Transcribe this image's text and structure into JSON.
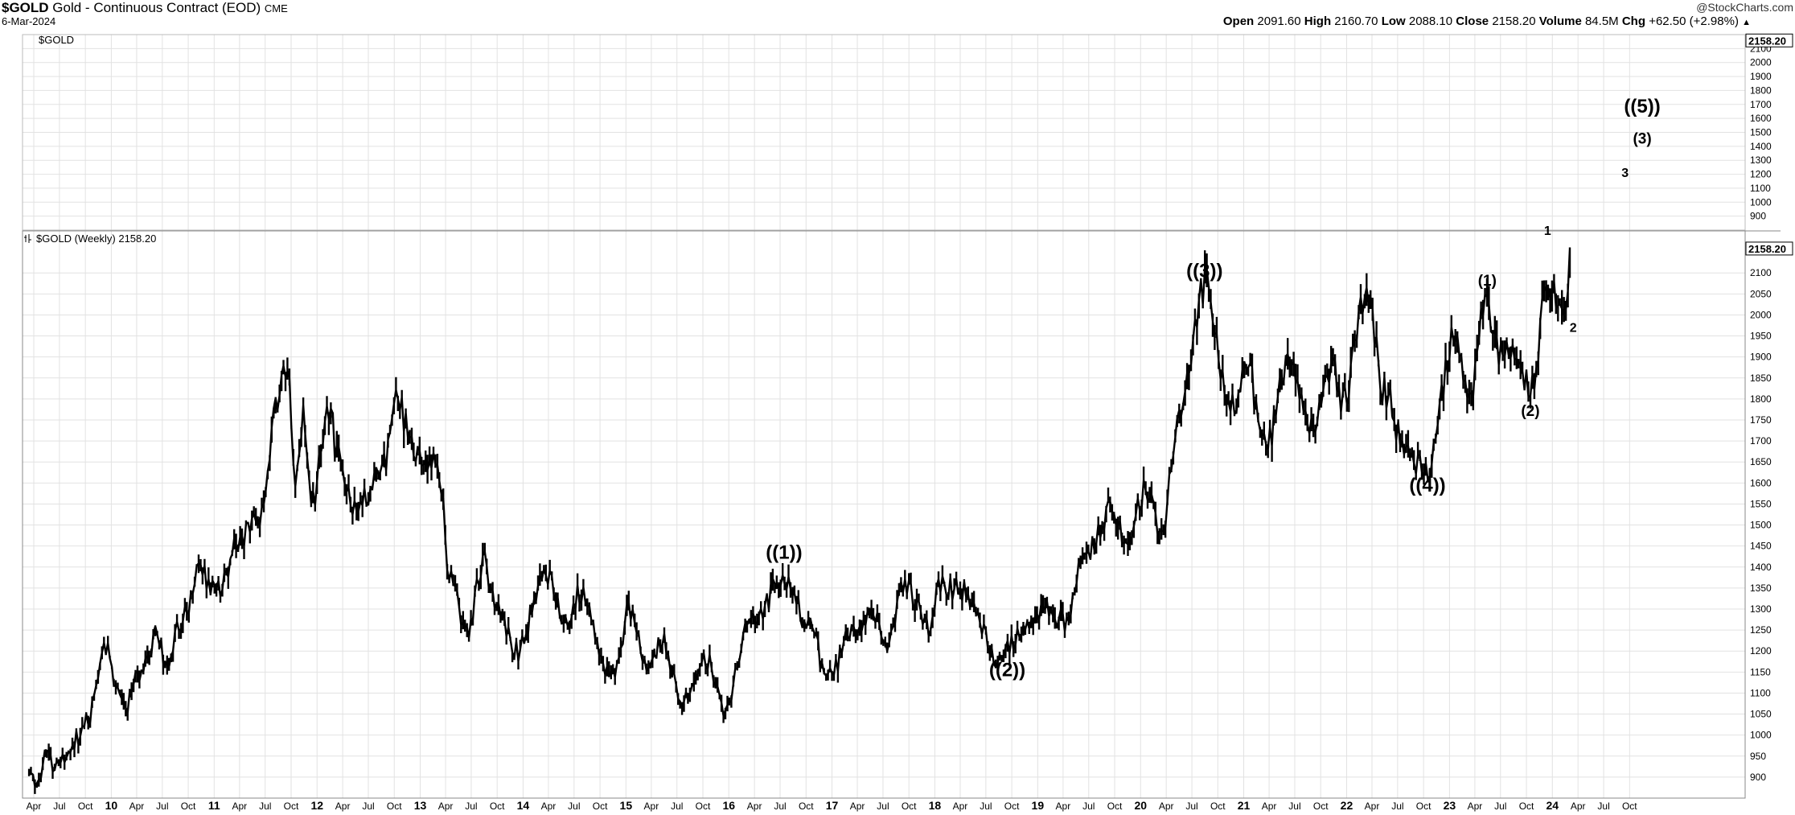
{
  "header": {
    "symbol": "$GOLD",
    "title": "Gold - Continuous Contract (EOD)",
    "exchange": "CME",
    "date": "6-Mar-2024",
    "brand": "@StockCharts.com",
    "ohlc": {
      "open_label": "Open",
      "open": "2091.60",
      "high_label": "High",
      "high": "2160.70",
      "low_label": "Low",
      "low": "2088.10",
      "close_label": "Close",
      "close": "2158.20",
      "volume_label": "Volume",
      "volume": "84.5M",
      "chg_label": "Chg",
      "chg": "+62.50 (+2.98%)",
      "chg_arrow": "▲"
    }
  },
  "colors": {
    "price": "#000000",
    "grid": "#e2e2e2",
    "background": "#ffffff"
  },
  "chart_data": [
    {
      "type": "line",
      "panel": "top",
      "legend": "$GOLD",
      "last_value_tag": "2158.20",
      "ylim": [
        800,
        2200
      ],
      "y_ticks": [
        900,
        1000,
        1100,
        1200,
        1300,
        1400,
        1500,
        1600,
        1700,
        1800,
        1900,
        2000,
        2100
      ],
      "grid": true,
      "annotations": [
        {
          "label": "((5))",
          "x": "2024-11",
          "y": 1640
        },
        {
          "label": "(3)",
          "x": "2024-11",
          "y": 1420
        },
        {
          "label": "3",
          "x": "2024-09",
          "y": 1180
        }
      ]
    },
    {
      "type": "line",
      "panel": "main",
      "legend": "$GOLD (Weekly) 2158.20",
      "series": [
        {
          "name": "$GOLD (Weekly)",
          "anchors": [
            [
              "2009-03",
              920
            ],
            [
              "2009-04",
              880
            ],
            [
              "2009-05",
              960
            ],
            [
              "2009-06",
              920
            ],
            [
              "2009-07",
              940
            ],
            [
              "2009-09",
              1000
            ],
            [
              "2009-10",
              1050
            ],
            [
              "2009-12",
              1220
            ],
            [
              "2010-01",
              1100
            ],
            [
              "2010-02",
              1060
            ],
            [
              "2010-04",
              1150
            ],
            [
              "2010-06",
              1240
            ],
            [
              "2010-07",
              1170
            ],
            [
              "2010-09",
              1280
            ],
            [
              "2010-11",
              1390
            ],
            [
              "2011-01",
              1340
            ],
            [
              "2011-04",
              1480
            ],
            [
              "2011-06",
              1510
            ],
            [
              "2011-08",
              1800
            ],
            [
              "2011-09",
              1900
            ],
            [
              "2011-10",
              1620
            ],
            [
              "2011-11",
              1750
            ],
            [
              "2011-12",
              1560
            ],
            [
              "2012-02",
              1780
            ],
            [
              "2012-03",
              1650
            ],
            [
              "2012-05",
              1540
            ],
            [
              "2012-08",
              1620
            ],
            [
              "2012-10",
              1790
            ],
            [
              "2012-12",
              1670
            ],
            [
              "2013-02",
              1640
            ],
            [
              "2013-03",
              1590
            ],
            [
              "2013-04",
              1390
            ],
            [
              "2013-06",
              1230
            ],
            [
              "2013-08",
              1410
            ],
            [
              "2013-09",
              1320
            ],
            [
              "2013-12",
              1200
            ],
            [
              "2014-03",
              1380
            ],
            [
              "2014-06",
              1250
            ],
            [
              "2014-07",
              1340
            ],
            [
              "2014-11",
              1140
            ],
            [
              "2015-01",
              1300
            ],
            [
              "2015-03",
              1150
            ],
            [
              "2015-05",
              1230
            ],
            [
              "2015-07",
              1080
            ],
            [
              "2015-10",
              1180
            ],
            [
              "2015-12",
              1050
            ],
            [
              "2016-03",
              1260
            ],
            [
              "2016-07",
              1370
            ],
            [
              "2016-10",
              1260
            ],
            [
              "2016-12",
              1130
            ],
            [
              "2017-03",
              1250
            ],
            [
              "2017-06",
              1280
            ],
            [
              "2017-07",
              1210
            ],
            [
              "2017-09",
              1350
            ],
            [
              "2017-12",
              1250
            ],
            [
              "2018-01",
              1360
            ],
            [
              "2018-04",
              1340
            ],
            [
              "2018-08",
              1170
            ],
            [
              "2018-10",
              1230
            ],
            [
              "2019-01",
              1300
            ],
            [
              "2019-04",
              1270
            ],
            [
              "2019-06",
              1420
            ],
            [
              "2019-09",
              1540
            ],
            [
              "2019-11",
              1460
            ],
            [
              "2020-01",
              1580
            ],
            [
              "2020-03",
              1470
            ],
            [
              "2020-05",
              1740
            ],
            [
              "2020-08",
              2070
            ],
            [
              "2020-11",
              1780
            ],
            [
              "2021-01",
              1870
            ],
            [
              "2021-03",
              1680
            ],
            [
              "2021-06",
              1900
            ],
            [
              "2021-08",
              1730
            ],
            [
              "2021-11",
              1860
            ],
            [
              "2021-12",
              1780
            ],
            [
              "2022-03",
              2050
            ],
            [
              "2022-05",
              1820
            ],
            [
              "2022-07",
              1700
            ],
            [
              "2022-09",
              1630
            ],
            [
              "2022-10",
              1620
            ],
            [
              "2023-01",
              1940
            ],
            [
              "2023-03",
              1820
            ],
            [
              "2023-05",
              2050
            ],
            [
              "2023-06",
              1920
            ],
            [
              "2023-08",
              1890
            ],
            [
              "2023-10",
              1830
            ],
            [
              "2023-12",
              2070
            ],
            [
              "2024-02",
              2020
            ],
            [
              "2024-03",
              2158
            ]
          ]
        }
      ],
      "ylim": [
        850,
        2200
      ],
      "y_ticks": [
        900,
        950,
        1000,
        1050,
        1100,
        1150,
        1200,
        1250,
        1300,
        1350,
        1400,
        1450,
        1500,
        1550,
        1600,
        1650,
        1700,
        1750,
        1800,
        1850,
        1900,
        1950,
        2000,
        2050,
        2100
      ],
      "last_value_tag": "2158.20",
      "grid": true,
      "annotations": [
        {
          "label": "((1))",
          "x": "2016-07",
          "y": 1420,
          "size": "large"
        },
        {
          "label": "((2))",
          "x": "2018-09",
          "y": 1140,
          "size": "large"
        },
        {
          "label": "((3))",
          "x": "2020-08",
          "y": 2090,
          "size": "large"
        },
        {
          "label": "((4))",
          "x": "2022-10",
          "y": 1580,
          "size": "large"
        },
        {
          "label": "(1)",
          "x": "2023-05",
          "y": 2070,
          "size": "medium"
        },
        {
          "label": "(2)",
          "x": "2023-10",
          "y": 1760,
          "size": "medium"
        },
        {
          "label": "1",
          "x": "2023-12",
          "y": 2190,
          "size": "small"
        },
        {
          "label": "2",
          "x": "2024-03",
          "y": 1960,
          "size": "small"
        }
      ]
    }
  ],
  "x_axis": {
    "range": [
      "2009-02-20",
      "2025-11-15"
    ],
    "ticks": [
      [
        "2009-04-01",
        "Apr"
      ],
      [
        "2009-07-01",
        "Jul"
      ],
      [
        "2009-10-01",
        "Oct"
      ],
      [
        "2010-01-01",
        "10"
      ],
      [
        "2010-04-01",
        "Apr"
      ],
      [
        "2010-07-01",
        "Jul"
      ],
      [
        "2010-10-01",
        "Oct"
      ],
      [
        "2011-01-01",
        "11"
      ],
      [
        "2011-04-01",
        "Apr"
      ],
      [
        "2011-07-01",
        "Jul"
      ],
      [
        "2011-10-01",
        "Oct"
      ],
      [
        "2012-01-01",
        "12"
      ],
      [
        "2012-04-01",
        "Apr"
      ],
      [
        "2012-07-01",
        "Jul"
      ],
      [
        "2012-10-01",
        "Oct"
      ],
      [
        "2013-01-01",
        "13"
      ],
      [
        "2013-04-01",
        "Apr"
      ],
      [
        "2013-07-01",
        "Jul"
      ],
      [
        "2013-10-01",
        "Oct"
      ],
      [
        "2014-01-01",
        "14"
      ],
      [
        "2014-04-01",
        "Apr"
      ],
      [
        "2014-07-01",
        "Jul"
      ],
      [
        "2014-10-01",
        "Oct"
      ],
      [
        "2015-01-01",
        "15"
      ],
      [
        "2015-04-01",
        "Apr"
      ],
      [
        "2015-07-01",
        "Jul"
      ],
      [
        "2015-10-01",
        "Oct"
      ],
      [
        "2016-01-01",
        "16"
      ],
      [
        "2016-04-01",
        "Apr"
      ],
      [
        "2016-07-01",
        "Jul"
      ],
      [
        "2016-10-01",
        "Oct"
      ],
      [
        "2017-01-01",
        "17"
      ],
      [
        "2017-04-01",
        "Apr"
      ],
      [
        "2017-07-01",
        "Jul"
      ],
      [
        "2017-10-01",
        "Oct"
      ],
      [
        "2018-01-01",
        "18"
      ],
      [
        "2018-04-01",
        "Apr"
      ],
      [
        "2018-07-01",
        "Jul"
      ],
      [
        "2018-10-01",
        "Oct"
      ],
      [
        "2019-01-01",
        "19"
      ],
      [
        "2019-04-01",
        "Apr"
      ],
      [
        "2019-07-01",
        "Jul"
      ],
      [
        "2019-10-01",
        "Oct"
      ],
      [
        "2020-01-01",
        "20"
      ],
      [
        "2020-04-01",
        "Apr"
      ],
      [
        "2020-07-01",
        "Jul"
      ],
      [
        "2020-10-01",
        "Oct"
      ],
      [
        "2021-01-01",
        "21"
      ],
      [
        "2021-04-01",
        "Apr"
      ],
      [
        "2021-07-01",
        "Jul"
      ],
      [
        "2021-10-01",
        "Oct"
      ],
      [
        "2022-01-01",
        "22"
      ],
      [
        "2022-04-01",
        "Apr"
      ],
      [
        "2022-07-01",
        "Jul"
      ],
      [
        "2022-10-01",
        "Oct"
      ],
      [
        "2023-01-01",
        "23"
      ],
      [
        "2023-04-01",
        "Apr"
      ],
      [
        "2023-07-01",
        "Jul"
      ],
      [
        "2023-10-01",
        "Oct"
      ],
      [
        "2024-01-01",
        "24"
      ],
      [
        "2024-04-01",
        "Apr"
      ],
      [
        "2024-07-01",
        "Jul"
      ],
      [
        "2024-10-01",
        "Oct"
      ]
    ]
  }
}
